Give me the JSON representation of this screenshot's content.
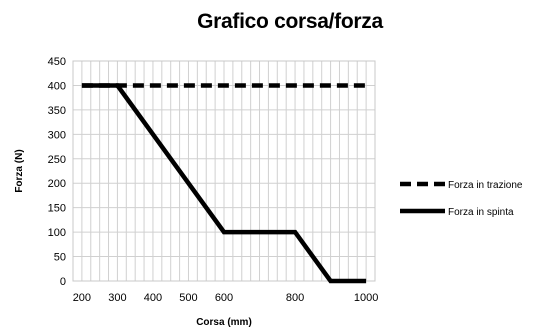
{
  "chart_data": {
    "type": "line",
    "title": "Grafico corsa/forza",
    "xlabel": "Corsa (mm)",
    "ylabel": "Forza (N)",
    "xlim": [
      175,
      1025
    ],
    "ylim": [
      0,
      450
    ],
    "x_ticks": [
      200,
      300,
      400,
      500,
      600,
      800,
      1000
    ],
    "y_ticks": [
      0,
      50,
      100,
      150,
      200,
      250,
      300,
      350,
      400,
      450
    ],
    "grid": true,
    "legend_position": "right",
    "series": [
      {
        "name": "Forza in trazione",
        "style": "dashed",
        "color": "#000000",
        "x": [
          200,
          300,
          400,
          500,
          600,
          800,
          1000
        ],
        "y": [
          400,
          400,
          400,
          400,
          400,
          400,
          400
        ]
      },
      {
        "name": "Forza in spinta",
        "style": "solid",
        "color": "#000000",
        "x": [
          200,
          300,
          600,
          800,
          900,
          1000
        ],
        "y": [
          400,
          400,
          100,
          100,
          0,
          0
        ]
      }
    ]
  }
}
